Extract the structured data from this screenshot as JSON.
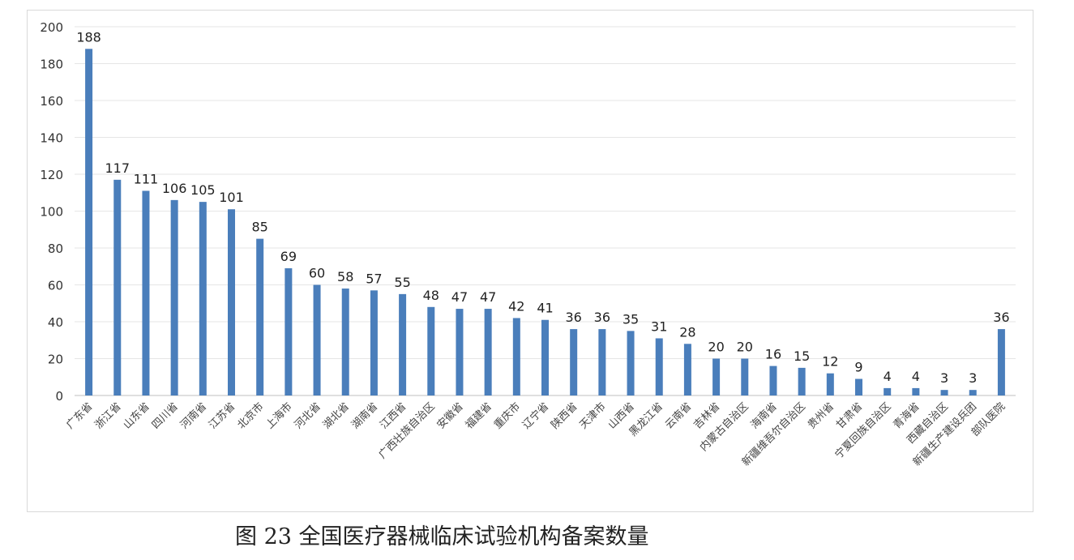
{
  "chart_data": {
    "type": "bar",
    "categories": [
      "广东省",
      "浙江省",
      "山东省",
      "四川省",
      "河南省",
      "江苏省",
      "北京市",
      "上海市",
      "河北省",
      "湖北省",
      "湖南省",
      "江西省",
      "广西壮族自治区",
      "安徽省",
      "福建省",
      "重庆市",
      "辽宁省",
      "陕西省",
      "天津市",
      "山西省",
      "黑龙江省",
      "云南省",
      "吉林省",
      "内蒙古自治区",
      "海南省",
      "新疆维吾尔自治区",
      "贵州省",
      "甘肃省",
      "宁夏回族自治区",
      "青海省",
      "西藏自治区",
      "新疆生产建设兵团",
      "部队医院"
    ],
    "values": [
      188,
      117,
      111,
      106,
      105,
      101,
      85,
      69,
      60,
      58,
      57,
      55,
      48,
      47,
      47,
      42,
      41,
      36,
      36,
      35,
      31,
      28,
      20,
      20,
      16,
      15,
      12,
      9,
      4,
      4,
      3,
      3,
      36
    ],
    "ylim": [
      0,
      200
    ],
    "yticks": [
      0,
      20,
      40,
      60,
      80,
      100,
      120,
      140,
      160,
      180,
      200
    ],
    "grid": true,
    "data_labels": true,
    "bar_color": "#4a7ebb",
    "xlabel": "",
    "ylabel": ""
  },
  "caption": "图 23  全国医疗器械临床试验机构备案数量"
}
